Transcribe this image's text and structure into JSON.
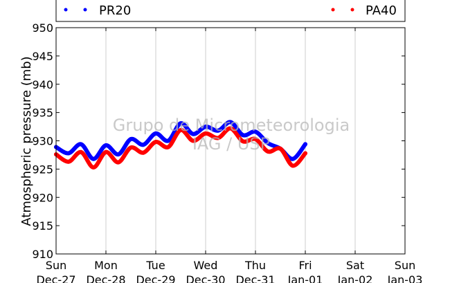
{
  "chart_data": {
    "type": "line",
    "ylabel": "Atmospheric pressure (mb)",
    "xlabel": "",
    "ylim": [
      910,
      950
    ],
    "yticks": [
      910,
      915,
      920,
      925,
      930,
      935,
      940,
      945,
      950
    ],
    "xticks": [
      {
        "day": "Sun",
        "date": "Dec-27"
      },
      {
        "day": "Mon",
        "date": "Dec-28"
      },
      {
        "day": "Tue",
        "date": "Dec-29"
      },
      {
        "day": "Wed",
        "date": "Dec-30"
      },
      {
        "day": "Thu",
        "date": "Dec-31"
      },
      {
        "day": "Fri",
        "date": "Jan-01"
      },
      {
        "day": "Sat",
        "date": "Jan-02"
      },
      {
        "day": "Sun",
        "date": "Jan-03"
      }
    ],
    "xlim": [
      "Dec-27",
      "Jan-03"
    ],
    "grid": "vertical",
    "legend_position": "top",
    "watermark": [
      "Grupo de Micrometeorologia",
      "IAG / USP"
    ],
    "series": [
      {
        "name": "PR20",
        "color": "#0000ff",
        "x": [
          "Dec-27 00:00",
          "Dec-27 06:00",
          "Dec-27 12:00",
          "Dec-27 18:00",
          "Dec-28 00:00",
          "Dec-28 06:00",
          "Dec-28 12:00",
          "Dec-28 18:00",
          "Dec-29 00:00",
          "Dec-29 06:00",
          "Dec-29 12:00",
          "Dec-29 18:00",
          "Dec-30 00:00",
          "Dec-30 06:00",
          "Dec-30 12:00",
          "Dec-30 18:00",
          "Dec-31 00:00",
          "Dec-31 06:00",
          "Dec-31 12:00",
          "Dec-31 18:00",
          "Jan-01 00:00"
        ],
        "y": [
          928.9,
          927.8,
          929.4,
          926.8,
          929.2,
          927.6,
          930.3,
          929.3,
          931.3,
          930.0,
          933.1,
          931.2,
          932.5,
          931.8,
          933.3,
          931.0,
          931.6,
          929.6,
          928.6,
          926.8,
          929.4
        ]
      },
      {
        "name": "PA40",
        "color": "#ff0000",
        "x": [
          "Dec-27 00:00",
          "Dec-27 06:00",
          "Dec-27 12:00",
          "Dec-27 18:00",
          "Dec-28 00:00",
          "Dec-28 06:00",
          "Dec-28 12:00",
          "Dec-28 18:00",
          "Dec-29 00:00",
          "Dec-29 06:00",
          "Dec-29 12:00",
          "Dec-29 18:00",
          "Dec-30 00:00",
          "Dec-30 06:00",
          "Dec-30 12:00",
          "Dec-30 18:00",
          "Dec-31 00:00",
          "Dec-31 06:00",
          "Dec-31 12:00",
          "Dec-31 18:00",
          "Jan-01 00:00"
        ],
        "y": [
          927.6,
          926.3,
          928.0,
          925.3,
          928.0,
          926.2,
          928.8,
          927.9,
          929.8,
          928.9,
          931.9,
          930.0,
          931.3,
          930.5,
          932.2,
          929.9,
          930.3,
          928.1,
          928.6,
          925.6,
          927.8
        ]
      }
    ]
  }
}
